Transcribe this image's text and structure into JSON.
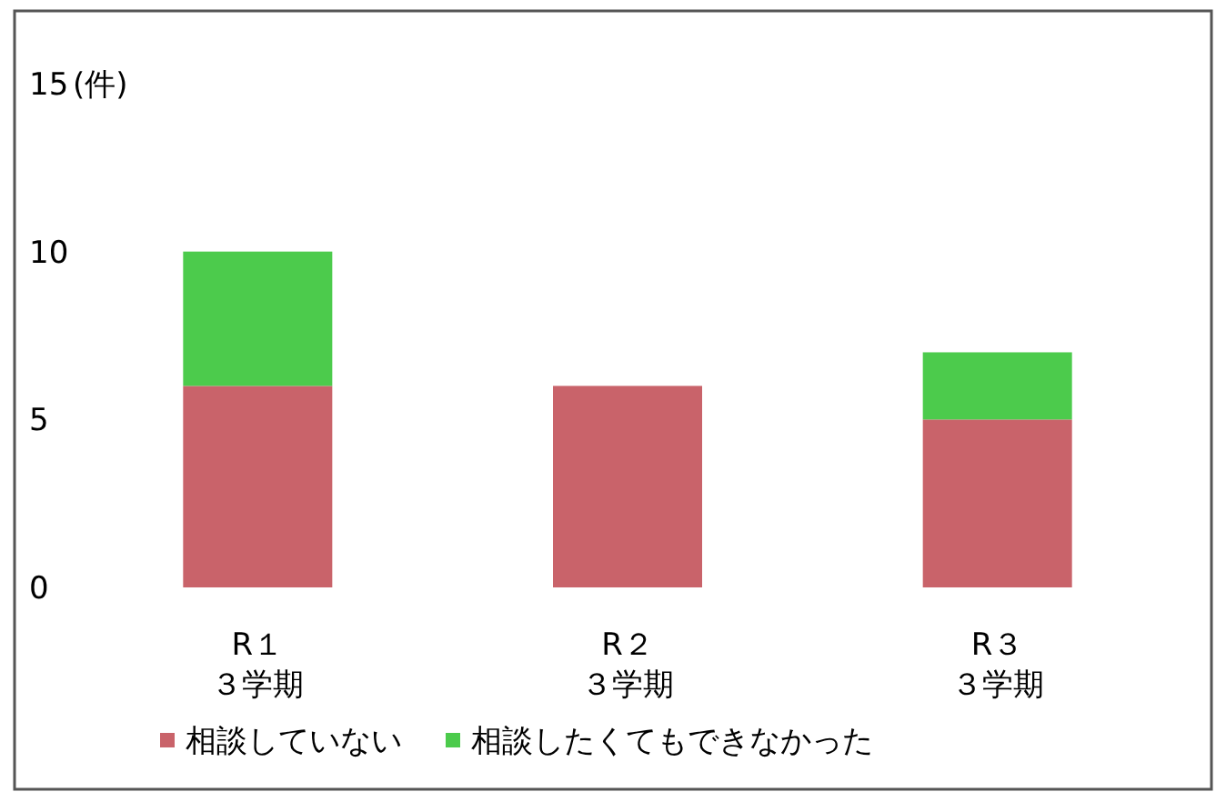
{
  "chart_data": {
    "type": "bar",
    "stacked": true,
    "ylabel": "(件)",
    "categories": [
      "R１３学期",
      "R２３学期",
      "R３３学期"
    ],
    "series": [
      {
        "name": "相談していない",
        "color": "#c9636a",
        "values": [
          6,
          6,
          5
        ]
      },
      {
        "name": "相談したくてもできなかった",
        "color": "#4ccb4c",
        "values": [
          4,
          0,
          2
        ]
      }
    ],
    "ylim": [
      0,
      15
    ],
    "yticks": [
      0,
      5,
      10,
      15
    ],
    "legend": "bottom"
  }
}
